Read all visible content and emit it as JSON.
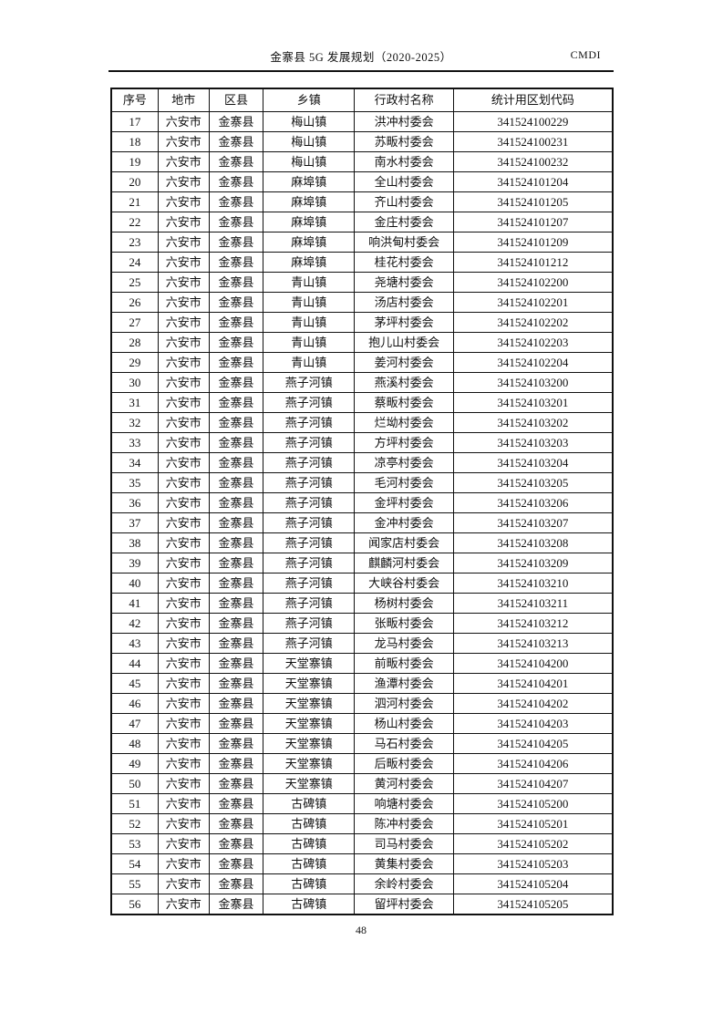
{
  "header": {
    "title": "金寨县 5G 发展规划（2020-2025）",
    "brand": "CMDI"
  },
  "table": {
    "columns": [
      "序号",
      "地市",
      "区县",
      "乡镇",
      "行政村名称",
      "统计用区划代码"
    ],
    "column_keys": [
      "index",
      "city",
      "county",
      "town",
      "village",
      "code"
    ],
    "rows": [
      [
        "17",
        "六安市",
        "金寨县",
        "梅山镇",
        "洪冲村委会",
        "341524100229"
      ],
      [
        "18",
        "六安市",
        "金寨县",
        "梅山镇",
        "苏畈村委会",
        "341524100231"
      ],
      [
        "19",
        "六安市",
        "金寨县",
        "梅山镇",
        "南水村委会",
        "341524100232"
      ],
      [
        "20",
        "六安市",
        "金寨县",
        "麻埠镇",
        "全山村委会",
        "341524101204"
      ],
      [
        "21",
        "六安市",
        "金寨县",
        "麻埠镇",
        "齐山村委会",
        "341524101205"
      ],
      [
        "22",
        "六安市",
        "金寨县",
        "麻埠镇",
        "金庄村委会",
        "341524101207"
      ],
      [
        "23",
        "六安市",
        "金寨县",
        "麻埠镇",
        "响洪甸村委会",
        "341524101209"
      ],
      [
        "24",
        "六安市",
        "金寨县",
        "麻埠镇",
        "桂花村委会",
        "341524101212"
      ],
      [
        "25",
        "六安市",
        "金寨县",
        "青山镇",
        "尧塘村委会",
        "341524102200"
      ],
      [
        "26",
        "六安市",
        "金寨县",
        "青山镇",
        "汤店村委会",
        "341524102201"
      ],
      [
        "27",
        "六安市",
        "金寨县",
        "青山镇",
        "茅坪村委会",
        "341524102202"
      ],
      [
        "28",
        "六安市",
        "金寨县",
        "青山镇",
        "抱儿山村委会",
        "341524102203"
      ],
      [
        "29",
        "六安市",
        "金寨县",
        "青山镇",
        "姜河村委会",
        "341524102204"
      ],
      [
        "30",
        "六安市",
        "金寨县",
        "燕子河镇",
        "燕溪村委会",
        "341524103200"
      ],
      [
        "31",
        "六安市",
        "金寨县",
        "燕子河镇",
        "蔡畈村委会",
        "341524103201"
      ],
      [
        "32",
        "六安市",
        "金寨县",
        "燕子河镇",
        "烂坳村委会",
        "341524103202"
      ],
      [
        "33",
        "六安市",
        "金寨县",
        "燕子河镇",
        "方坪村委会",
        "341524103203"
      ],
      [
        "34",
        "六安市",
        "金寨县",
        "燕子河镇",
        "凉亭村委会",
        "341524103204"
      ],
      [
        "35",
        "六安市",
        "金寨县",
        "燕子河镇",
        "毛河村委会",
        "341524103205"
      ],
      [
        "36",
        "六安市",
        "金寨县",
        "燕子河镇",
        "金坪村委会",
        "341524103206"
      ],
      [
        "37",
        "六安市",
        "金寨县",
        "燕子河镇",
        "金冲村委会",
        "341524103207"
      ],
      [
        "38",
        "六安市",
        "金寨县",
        "燕子河镇",
        "闻家店村委会",
        "341524103208"
      ],
      [
        "39",
        "六安市",
        "金寨县",
        "燕子河镇",
        "麒麟河村委会",
        "341524103209"
      ],
      [
        "40",
        "六安市",
        "金寨县",
        "燕子河镇",
        "大峡谷村委会",
        "341524103210"
      ],
      [
        "41",
        "六安市",
        "金寨县",
        "燕子河镇",
        "杨树村委会",
        "341524103211"
      ],
      [
        "42",
        "六安市",
        "金寨县",
        "燕子河镇",
        "张畈村委会",
        "341524103212"
      ],
      [
        "43",
        "六安市",
        "金寨县",
        "燕子河镇",
        "龙马村委会",
        "341524103213"
      ],
      [
        "44",
        "六安市",
        "金寨县",
        "天堂寨镇",
        "前畈村委会",
        "341524104200"
      ],
      [
        "45",
        "六安市",
        "金寨县",
        "天堂寨镇",
        "渔潭村委会",
        "341524104201"
      ],
      [
        "46",
        "六安市",
        "金寨县",
        "天堂寨镇",
        "泗河村委会",
        "341524104202"
      ],
      [
        "47",
        "六安市",
        "金寨县",
        "天堂寨镇",
        "杨山村委会",
        "341524104203"
      ],
      [
        "48",
        "六安市",
        "金寨县",
        "天堂寨镇",
        "马石村委会",
        "341524104205"
      ],
      [
        "49",
        "六安市",
        "金寨县",
        "天堂寨镇",
        "后畈村委会",
        "341524104206"
      ],
      [
        "50",
        "六安市",
        "金寨县",
        "天堂寨镇",
        "黄河村委会",
        "341524104207"
      ],
      [
        "51",
        "六安市",
        "金寨县",
        "古碑镇",
        "响塘村委会",
        "341524105200"
      ],
      [
        "52",
        "六安市",
        "金寨县",
        "古碑镇",
        "陈冲村委会",
        "341524105201"
      ],
      [
        "53",
        "六安市",
        "金寨县",
        "古碑镇",
        "司马村委会",
        "341524105202"
      ],
      [
        "54",
        "六安市",
        "金寨县",
        "古碑镇",
        "黄集村委会",
        "341524105203"
      ],
      [
        "55",
        "六安市",
        "金寨县",
        "古碑镇",
        "余岭村委会",
        "341524105204"
      ],
      [
        "56",
        "六安市",
        "金寨县",
        "古碑镇",
        "留坪村委会",
        "341524105205"
      ]
    ]
  },
  "footer": {
    "page_number": "48"
  }
}
